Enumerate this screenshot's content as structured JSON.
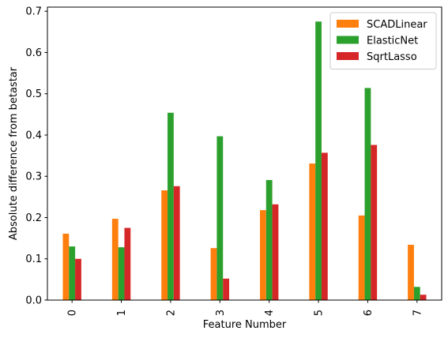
{
  "chart_data": {
    "type": "bar",
    "categories": [
      "0",
      "1",
      "2",
      "3",
      "4",
      "5",
      "6",
      "7"
    ],
    "series": [
      {
        "name": "SCADLinear",
        "color": "#ff7f0e",
        "values": [
          0.161,
          0.197,
          0.266,
          0.126,
          0.218,
          0.331,
          0.205,
          0.134
        ]
      },
      {
        "name": "ElasticNet",
        "color": "#2ca02c",
        "values": [
          0.13,
          0.128,
          0.454,
          0.397,
          0.291,
          0.675,
          0.514,
          0.032
        ]
      },
      {
        "name": "SqrtLasso",
        "color": "#d62728",
        "values": [
          0.1,
          0.175,
          0.276,
          0.052,
          0.232,
          0.357,
          0.376,
          0.013
        ]
      }
    ],
    "xlabel": "Feature Number",
    "ylabel": "Absolute difference from betastar",
    "ylim": [
      0,
      0.71
    ],
    "yticks": [
      "0.0",
      "0.1",
      "0.2",
      "0.3",
      "0.4",
      "0.5",
      "0.6",
      "0.7"
    ],
    "grid": false,
    "legend_position": "top-right"
  }
}
